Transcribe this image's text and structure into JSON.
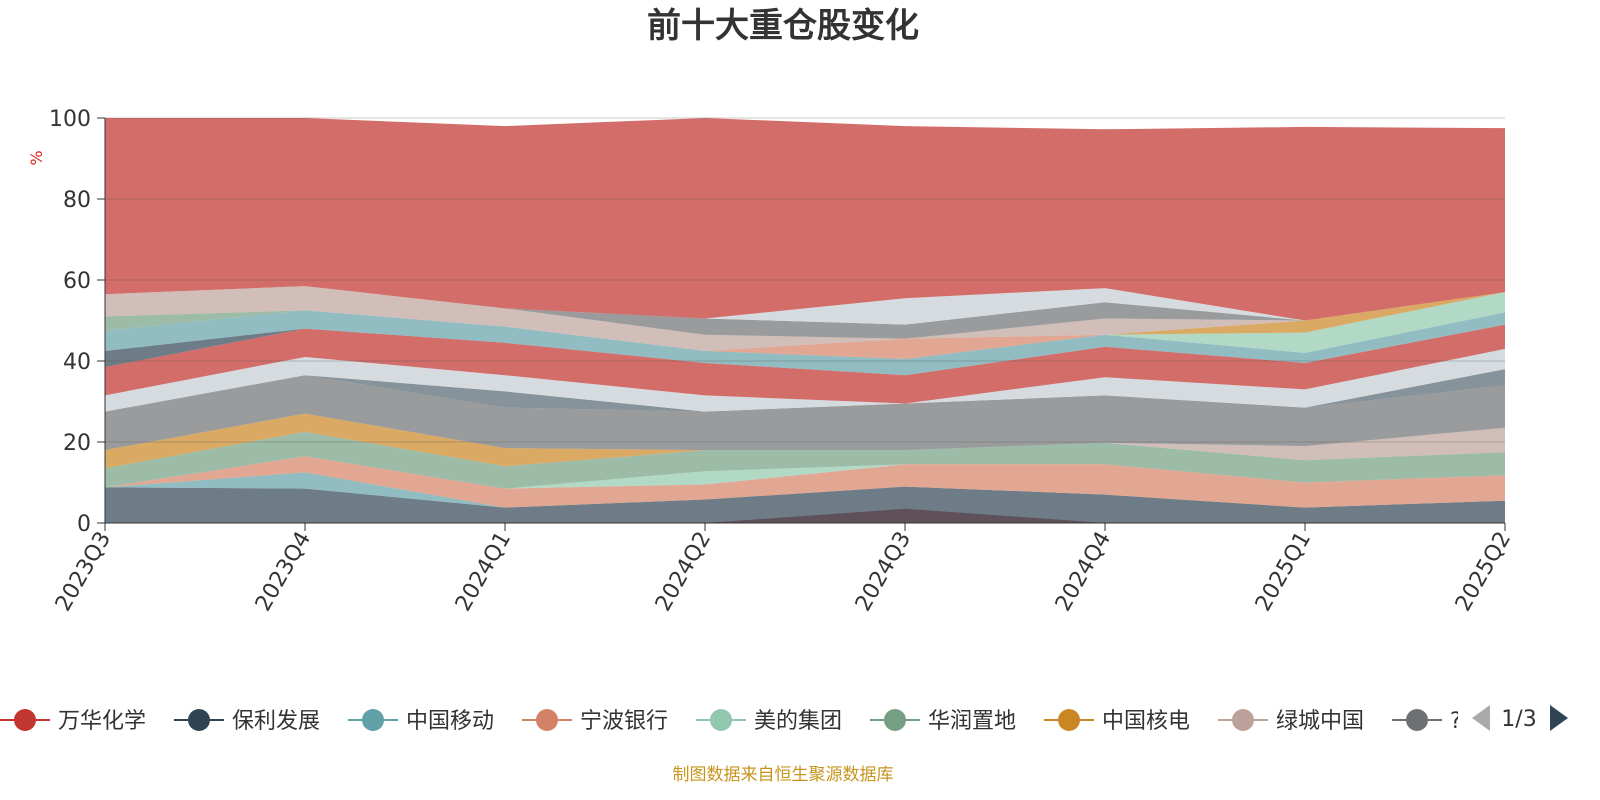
{
  "chart_data": {
    "type": "area",
    "title": "前十大重仓股变化",
    "ylabel": "%",
    "ylim": [
      0,
      100
    ],
    "yticks": [
      "0",
      "20",
      "40",
      "60",
      "80",
      "100"
    ],
    "categories": [
      "2023Q3",
      "2023Q4",
      "2024Q1",
      "2024Q2",
      "2024Q3",
      "2024Q4",
      "2025Q1",
      "2025Q2"
    ],
    "grid": true,
    "source": "制图数据来自恒生聚源数据库",
    "legend": {
      "position": "bottom",
      "page": "1/3",
      "items": [
        {
          "name": "万华化学",
          "color": "#c23531"
        },
        {
          "name": "保利发展",
          "color": "#2f4554"
        },
        {
          "name": "中国移动",
          "color": "#61a0a8"
        },
        {
          "name": "宁波银行",
          "color": "#d48265"
        },
        {
          "name": "美的集团",
          "color": "#91c7ae"
        },
        {
          "name": "华润置地",
          "color": "#749f83"
        },
        {
          "name": "中国核电",
          "color": "#ca8622"
        },
        {
          "name": "绿城中国",
          "color": "#bda29a"
        },
        {
          "name": "?",
          "color": "#6e7074"
        }
      ]
    },
    "bands": [
      {
        "color": "#c23531",
        "opacity": 0.72,
        "upper": [
          0,
          0,
          0,
          0,
          3.5,
          0,
          0,
          0
        ],
        "lower": [
          0,
          0,
          0,
          0,
          0,
          0,
          0,
          0
        ]
      },
      {
        "color": "#2f4554",
        "opacity": 0.7,
        "upper": [
          8.8,
          8.5,
          3.8,
          5.8,
          9.0,
          7.0,
          3.8,
          5.5
        ],
        "lower": [
          0,
          0,
          0,
          0,
          0,
          0,
          0,
          0
        ]
      },
      {
        "color": "#61a0a8",
        "opacity": 0.7,
        "upper": [
          8.8,
          12.5,
          3.8,
          5.8,
          9.0,
          7.0,
          3.8,
          5.5
        ],
        "lower": [
          8.8,
          8.5,
          3.8,
          5.8,
          9.0,
          7.0,
          3.8,
          5.5
        ]
      },
      {
        "color": "#d48265",
        "opacity": 0.7,
        "upper": [
          8.8,
          16.5,
          8.5,
          9.5,
          14.5,
          14.5,
          10.0,
          11.8
        ],
        "lower": [
          8.8,
          12.5,
          3.8,
          5.8,
          9.0,
          7.0,
          3.8,
          5.5
        ]
      },
      {
        "color": "#91c7ae",
        "opacity": 0.7,
        "upper": [
          8.8,
          16.5,
          8.5,
          12.8,
          14.5,
          14.5,
          10.0,
          11.8
        ],
        "lower": [
          8.8,
          16.5,
          8.5,
          9.5,
          14.5,
          14.5,
          10.0,
          11.8
        ]
      },
      {
        "color": "#749f83",
        "opacity": 0.7,
        "upper": [
          13.5,
          22.5,
          14.0,
          18.0,
          18.0,
          19.8,
          15.5,
          17.5
        ],
        "lower": [
          8.8,
          16.5,
          8.5,
          12.8,
          14.5,
          14.5,
          10.0,
          11.8
        ]
      },
      {
        "color": "#ca8622",
        "opacity": 0.7,
        "upper": [
          18.0,
          27.0,
          18.5,
          18.0,
          18.0,
          19.8,
          15.5,
          17.5
        ],
        "lower": [
          13.5,
          22.5,
          14.0,
          18.0,
          18.0,
          19.8,
          15.5,
          17.5
        ]
      },
      {
        "color": "#bda29a",
        "opacity": 0.7,
        "upper": [
          18.0,
          27.0,
          18.5,
          18.0,
          18.0,
          19.8,
          19.0,
          23.5
        ],
        "lower": [
          18.0,
          27.0,
          18.5,
          18.0,
          18.0,
          19.8,
          15.5,
          17.5
        ]
      },
      {
        "color": "#6e7074",
        "opacity": 0.7,
        "upper": [
          27.5,
          36.5,
          28.5,
          27.5,
          29.5,
          31.5,
          28.5,
          34.0
        ],
        "lower": [
          18.0,
          27.0,
          18.5,
          18.0,
          18.0,
          19.8,
          19.0,
          23.5
        ]
      },
      {
        "color": "#546570",
        "opacity": 0.7,
        "upper": [
          27.5,
          36.5,
          32.5,
          27.5,
          29.5,
          31.5,
          28.5,
          38.0
        ],
        "lower": [
          27.5,
          36.5,
          28.5,
          27.5,
          29.5,
          31.5,
          28.5,
          34.0
        ]
      },
      {
        "color": "#c4ccd3",
        "opacity": 0.7,
        "upper": [
          31.5,
          41.0,
          36.5,
          31.5,
          29.5,
          36.0,
          33.0,
          43.0
        ],
        "lower": [
          27.5,
          36.5,
          32.5,
          27.5,
          29.5,
          31.5,
          28.5,
          38.0
        ]
      },
      {
        "color": "#c23531",
        "opacity": 0.72,
        "upper": [
          38.5,
          48.0,
          44.5,
          39.5,
          36.5,
          43.5,
          39.5,
          49.0
        ],
        "lower": [
          31.5,
          41.0,
          36.5,
          31.5,
          29.5,
          36.0,
          33.0,
          43.0
        ]
      },
      {
        "color": "#2f4554",
        "opacity": 0.7,
        "upper": [
          42.5,
          48.0,
          44.5,
          39.5,
          36.5,
          43.5,
          39.5,
          49.0
        ],
        "lower": [
          38.5,
          48.0,
          44.5,
          39.5,
          36.5,
          43.5,
          39.5,
          49.0
        ]
      },
      {
        "color": "#61a0a8",
        "opacity": 0.7,
        "upper": [
          47.5,
          52.5,
          48.5,
          42.5,
          40.5,
          46.5,
          42.0,
          52.0
        ],
        "lower": [
          42.5,
          48.0,
          44.5,
          39.5,
          36.5,
          43.5,
          39.5,
          49.0
        ]
      },
      {
        "color": "#d48265",
        "opacity": 0.7,
        "upper": [
          47.5,
          52.5,
          48.5,
          42.5,
          45.5,
          46.5,
          42.0,
          52.0
        ],
        "lower": [
          47.5,
          52.5,
          48.5,
          42.5,
          40.5,
          46.5,
          42.0,
          52.0
        ]
      },
      {
        "color": "#91c7ae",
        "opacity": 0.7,
        "upper": [
          47.5,
          52.5,
          48.5,
          42.5,
          45.5,
          46.5,
          47.0,
          57.0
        ],
        "lower": [
          47.5,
          52.5,
          48.5,
          42.5,
          45.5,
          46.5,
          42.0,
          52.0
        ]
      },
      {
        "color": "#749f83",
        "opacity": 0.7,
        "upper": [
          51.0,
          52.5,
          48.5,
          42.5,
          45.5,
          46.5,
          47.0,
          57.0
        ],
        "lower": [
          47.5,
          52.5,
          48.5,
          42.5,
          45.5,
          46.5,
          47.0,
          57.0
        ]
      },
      {
        "color": "#ca8622",
        "opacity": 0.7,
        "upper": [
          51.0,
          52.5,
          48.5,
          42.5,
          45.5,
          46.5,
          50.0,
          57.0
        ],
        "lower": [
          51.0,
          52.5,
          48.5,
          42.5,
          45.5,
          46.5,
          47.0,
          57.0
        ]
      },
      {
        "color": "#bda29a",
        "opacity": 0.7,
        "upper": [
          56.5,
          58.5,
          53.0,
          46.5,
          45.5,
          50.5,
          50.0,
          57.0
        ],
        "lower": [
          51.0,
          52.5,
          48.5,
          42.5,
          45.5,
          46.5,
          50.0,
          57.0
        ]
      },
      {
        "color": "#6e7074",
        "opacity": 0.7,
        "upper": [
          56.5,
          58.5,
          53.0,
          50.5,
          49.0,
          54.5,
          50.0,
          57.0
        ],
        "lower": [
          56.5,
          58.5,
          53.0,
          46.5,
          45.5,
          50.5,
          50.0,
          57.0
        ]
      },
      {
        "color": "#c4ccd3",
        "opacity": 0.7,
        "upper": [
          56.5,
          58.5,
          53.0,
          50.5,
          55.5,
          58.0,
          50.0,
          57.0
        ],
        "lower": [
          56.5,
          58.5,
          53.0,
          50.5,
          49.0,
          54.5,
          50.0,
          57.0
        ]
      },
      {
        "color": "#c23531",
        "opacity": 0.72,
        "upper": [
          100,
          100,
          98.0,
          100,
          98.0,
          97.2,
          97.8,
          97.5
        ],
        "lower": [
          56.5,
          58.5,
          53.0,
          50.5,
          55.5,
          58.0,
          50.0,
          57.0
        ]
      }
    ]
  }
}
